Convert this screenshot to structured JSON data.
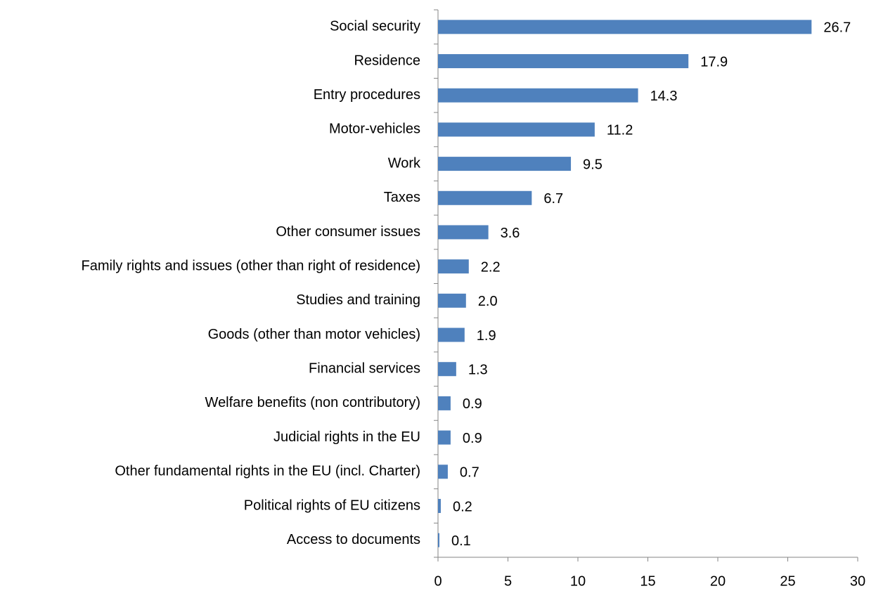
{
  "chart_data": {
    "type": "bar",
    "orientation": "horizontal",
    "categories": [
      "Social security",
      "Residence",
      "Entry procedures",
      "Motor-vehicles",
      "Work",
      "Taxes",
      "Other consumer issues",
      "Family rights and issues (other than right of residence)",
      "Studies and training",
      "Goods (other than motor vehicles)",
      "Financial services",
      "Welfare benefits (non contributory)",
      "Judicial rights in the EU",
      "Other fundamental rights in the EU (incl. Charter)",
      "Political rights of EU citizens",
      "Access to documents"
    ],
    "values": [
      26.7,
      17.9,
      14.3,
      11.2,
      9.5,
      6.7,
      3.6,
      2.2,
      2.0,
      1.9,
      1.3,
      0.9,
      0.9,
      0.7,
      0.2,
      0.1
    ],
    "value_labels": [
      "26.7",
      "17.9",
      "14.3",
      "11.2",
      "9.5",
      "6.7",
      "3.6",
      "2.2",
      "2.0",
      "1.9",
      "1.3",
      "0.9",
      "0.9",
      "0.7",
      "0.2",
      "0.1"
    ],
    "color": "#4f81bd",
    "xlim": [
      0,
      30
    ],
    "xticks": [
      0,
      5,
      10,
      15,
      20,
      25,
      30
    ],
    "grid": false
  }
}
